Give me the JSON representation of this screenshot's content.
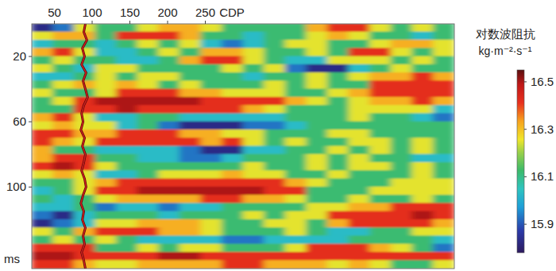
{
  "chart_data": {
    "type": "heatmap",
    "x_label": "CDP",
    "y_label": "ms",
    "xlim": [
      20,
      580
    ],
    "ylim": [
      0,
      150
    ],
    "xticks": [
      50,
      100,
      150,
      200,
      250
    ],
    "yticks": [
      20,
      60,
      100
    ],
    "x": [
      34,
      62,
      90,
      118,
      146,
      174,
      202,
      230,
      258,
      286,
      314,
      342,
      370,
      398,
      426,
      454,
      482,
      510,
      538,
      566
    ],
    "y": [
      2.5,
      7.5,
      12.5,
      17.5,
      22.5,
      27.5,
      32.5,
      37.5,
      42.5,
      47.5,
      52.5,
      57.5,
      62.5,
      67.5,
      72.5,
      77.5,
      82.5,
      87.5,
      92.5,
      97.5,
      102.5,
      107.5,
      112.5,
      117.5,
      122.5,
      127.5,
      132.5,
      137.5,
      142.5,
      147.5
    ],
    "values": [
      [
        15.83,
        15.93,
        16.25,
        16.12,
        16.12,
        16.25,
        16.32,
        16.32,
        16.25,
        16.12,
        16.12,
        16.12,
        16.12,
        16.32,
        16.42,
        16.42,
        16.25,
        16.12,
        16.25,
        16.12
      ],
      [
        16.25,
        16.32,
        16.32,
        16.12,
        16.42,
        16.42,
        16.42,
        16.32,
        16.12,
        16.12,
        16.03,
        16.12,
        16.12,
        16.25,
        16.32,
        16.25,
        16.12,
        16.12,
        16.03,
        16.12
      ],
      [
        16.03,
        16.12,
        16.12,
        16.03,
        16.12,
        16.25,
        16.12,
        16.25,
        16.03,
        15.93,
        16.03,
        16.12,
        16.25,
        16.25,
        16.12,
        16.12,
        16.25,
        16.32,
        16.32,
        16.25
      ],
      [
        16.32,
        16.42,
        16.25,
        16.03,
        16.03,
        16.12,
        16.25,
        16.12,
        16.32,
        16.32,
        16.25,
        16.12,
        16.12,
        16.25,
        16.12,
        16.42,
        16.42,
        16.25,
        16.12,
        16.25
      ],
      [
        16.12,
        16.25,
        16.12,
        16.12,
        16.03,
        16.03,
        16.12,
        16.32,
        16.42,
        16.42,
        16.25,
        16.12,
        16.03,
        16.03,
        16.25,
        16.25,
        16.25,
        16.12,
        16.25,
        16.12
      ],
      [
        16.25,
        16.12,
        16.03,
        16.25,
        16.25,
        16.12,
        16.12,
        16.12,
        16.12,
        16.25,
        16.12,
        16.25,
        15.93,
        15.83,
        15.83,
        16.03,
        16.12,
        16.25,
        16.12,
        16.12
      ],
      [
        16.03,
        16.03,
        16.12,
        16.25,
        16.12,
        16.25,
        16.25,
        16.12,
        16.12,
        16.12,
        16.03,
        16.12,
        16.12,
        16.25,
        16.12,
        16.25,
        16.32,
        16.32,
        16.42,
        16.32
      ],
      [
        16.12,
        16.25,
        16.32,
        16.25,
        16.32,
        16.25,
        16.12,
        16.25,
        16.12,
        16.12,
        16.12,
        16.25,
        16.12,
        16.25,
        16.12,
        16.12,
        16.42,
        16.42,
        16.42,
        16.42
      ],
      [
        16.25,
        16.12,
        16.12,
        16.25,
        16.42,
        16.42,
        16.42,
        16.32,
        16.32,
        16.25,
        16.25,
        16.25,
        16.12,
        16.12,
        16.25,
        16.32,
        16.42,
        16.42,
        16.42,
        16.42
      ],
      [
        16.12,
        16.25,
        16.42,
        16.5,
        16.5,
        16.5,
        16.5,
        16.5,
        16.42,
        16.42,
        16.42,
        16.42,
        16.32,
        16.25,
        16.12,
        16.25,
        16.32,
        16.32,
        16.42,
        16.32
      ],
      [
        16.12,
        16.12,
        16.42,
        16.42,
        16.5,
        16.42,
        16.42,
        16.42,
        16.42,
        16.42,
        16.32,
        16.25,
        16.12,
        16.12,
        16.12,
        16.25,
        16.25,
        16.25,
        16.25,
        16.03
      ],
      [
        16.32,
        16.42,
        16.25,
        16.03,
        16.03,
        16.12,
        16.12,
        16.03,
        16.03,
        16.03,
        16.03,
        16.03,
        16.12,
        16.12,
        16.12,
        16.25,
        16.12,
        16.12,
        16.03,
        15.93
      ],
      [
        16.25,
        16.32,
        16.25,
        16.25,
        16.03,
        16.12,
        15.93,
        15.83,
        15.83,
        15.83,
        15.93,
        15.93,
        16.03,
        16.12,
        16.12,
        16.12,
        16.12,
        16.12,
        16.12,
        16.12
      ],
      [
        16.42,
        16.42,
        16.32,
        16.32,
        16.42,
        16.42,
        16.42,
        16.32,
        16.32,
        16.25,
        16.25,
        16.12,
        16.12,
        16.12,
        16.25,
        16.25,
        16.12,
        16.12,
        16.12,
        16.12
      ],
      [
        16.42,
        16.32,
        16.25,
        16.42,
        16.42,
        16.42,
        16.42,
        16.42,
        16.32,
        16.42,
        16.25,
        16.12,
        16.25,
        16.12,
        16.12,
        16.25,
        16.25,
        16.12,
        16.25,
        16.12
      ],
      [
        16.32,
        16.12,
        16.12,
        16.03,
        16.03,
        16.03,
        16.03,
        15.93,
        15.83,
        15.83,
        16.03,
        16.03,
        16.12,
        16.12,
        16.25,
        16.12,
        16.25,
        16.12,
        16.25,
        16.12
      ],
      [
        16.32,
        16.42,
        16.42,
        16.12,
        16.12,
        16.03,
        16.03,
        15.93,
        15.93,
        16.03,
        16.12,
        16.12,
        16.12,
        16.25,
        16.12,
        16.25,
        16.12,
        16.12,
        16.03,
        16.03
      ],
      [
        16.42,
        16.5,
        16.42,
        16.25,
        16.12,
        16.12,
        16.12,
        16.12,
        16.12,
        16.12,
        16.25,
        16.12,
        16.12,
        16.25,
        16.12,
        16.25,
        16.25,
        16.12,
        16.25,
        16.12
      ],
      [
        16.25,
        16.32,
        16.25,
        16.03,
        16.03,
        16.12,
        16.25,
        16.25,
        16.25,
        16.32,
        16.25,
        16.25,
        16.12,
        16.12,
        16.25,
        16.12,
        16.12,
        16.12,
        16.25,
        16.12
      ],
      [
        16.12,
        16.12,
        16.25,
        16.32,
        16.42,
        16.42,
        16.42,
        16.42,
        16.42,
        16.42,
        16.42,
        16.42,
        16.32,
        16.25,
        16.12,
        16.12,
        16.12,
        16.25,
        16.25,
        16.25
      ],
      [
        16.03,
        16.12,
        16.25,
        16.42,
        16.42,
        16.5,
        16.5,
        16.5,
        16.5,
        16.5,
        16.5,
        16.42,
        16.42,
        16.12,
        16.12,
        16.12,
        16.25,
        16.25,
        16.25,
        16.25
      ],
      [
        16.12,
        16.03,
        16.12,
        16.25,
        16.32,
        16.32,
        16.32,
        16.32,
        16.42,
        16.42,
        16.32,
        16.32,
        16.25,
        16.12,
        16.12,
        16.25,
        16.12,
        16.12,
        16.25,
        16.12
      ],
      [
        16.03,
        16.03,
        16.12,
        15.93,
        16.03,
        16.03,
        15.93,
        16.03,
        16.03,
        16.12,
        16.12,
        16.12,
        16.12,
        16.25,
        16.25,
        16.32,
        16.32,
        16.42,
        16.42,
        16.42
      ],
      [
        15.93,
        15.83,
        16.03,
        16.12,
        16.12,
        16.12,
        16.03,
        16.12,
        16.12,
        16.12,
        16.25,
        16.12,
        16.25,
        16.25,
        16.42,
        16.42,
        16.42,
        16.42,
        16.5,
        16.42
      ],
      [
        15.83,
        15.93,
        16.03,
        16.25,
        16.25,
        16.32,
        16.32,
        16.32,
        16.25,
        16.12,
        16.12,
        16.25,
        16.25,
        16.12,
        16.32,
        16.42,
        16.42,
        16.42,
        16.42,
        16.32
      ],
      [
        16.25,
        16.12,
        16.32,
        16.42,
        16.42,
        16.42,
        16.32,
        16.32,
        16.25,
        16.12,
        16.12,
        16.12,
        16.25,
        16.12,
        16.03,
        16.03,
        16.12,
        16.12,
        16.25,
        16.25
      ],
      [
        16.12,
        16.25,
        16.12,
        16.25,
        16.12,
        16.03,
        16.03,
        16.03,
        16.03,
        15.93,
        15.93,
        16.03,
        16.03,
        16.03,
        16.03,
        16.12,
        16.12,
        16.12,
        16.12,
        16.03
      ],
      [
        16.42,
        16.42,
        16.42,
        16.12,
        16.12,
        16.25,
        16.12,
        16.25,
        16.25,
        16.12,
        16.12,
        16.12,
        16.25,
        16.42,
        16.42,
        16.42,
        16.32,
        16.25,
        16.12,
        15.93
      ],
      [
        16.5,
        16.5,
        16.42,
        16.42,
        16.42,
        16.42,
        16.5,
        16.5,
        16.42,
        16.42,
        16.42,
        16.42,
        16.42,
        16.42,
        16.42,
        16.42,
        16.42,
        16.42,
        16.42,
        16.42
      ],
      [
        16.42,
        16.42,
        16.32,
        16.25,
        16.25,
        16.32,
        16.32,
        16.32,
        16.32,
        16.42,
        16.42,
        16.32,
        16.32,
        16.32,
        16.25,
        16.32,
        16.25,
        16.12,
        16.12,
        16.25
      ]
    ],
    "colorbar": {
      "title": "对数波阻抗",
      "unit": "kg·m⁻²·s⁻¹",
      "range": [
        15.78,
        16.55
      ],
      "ticks": [
        15.9,
        16.1,
        16.3,
        16.5
      ]
    },
    "well_log": {
      "color": "#d42020",
      "time": [
        0,
        5,
        10,
        15,
        20,
        25,
        30,
        35,
        40,
        45,
        50,
        55,
        60,
        65,
        70,
        75,
        80,
        85,
        90,
        95,
        100,
        105,
        110,
        115,
        120,
        125,
        130,
        135,
        140,
        145,
        150
      ],
      "cdp": [
        91,
        89,
        93,
        87,
        90,
        86,
        92,
        88,
        91,
        94,
        89,
        86,
        88,
        85,
        90,
        87,
        91,
        89,
        86,
        90,
        92,
        88,
        85,
        89,
        87,
        91,
        88,
        90,
        86,
        89,
        91
      ]
    }
  }
}
